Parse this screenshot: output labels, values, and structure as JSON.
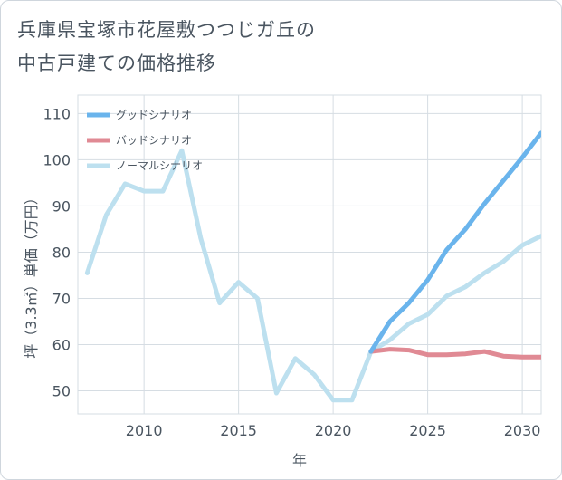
{
  "title_lines": [
    "兵庫県宝塚市花屋敷つつじガ丘の",
    "中古戸建ての価格推移"
  ],
  "chart_data": {
    "type": "line",
    "title": "兵庫県宝塚市花屋敷つつじガ丘の中古戸建ての価格推移",
    "xlabel": "年",
    "ylabel": "坪（3.3㎡）単価（万円）",
    "xlim": [
      2006.5,
      2031
    ],
    "ylim": [
      45,
      114
    ],
    "x_ticks": [
      2010,
      2015,
      2020,
      2025,
      2030
    ],
    "y_ticks": [
      50,
      60,
      70,
      80,
      90,
      100,
      110
    ],
    "grid": true,
    "legend_position": "top-left",
    "series": [
      {
        "name": "グッドシナリオ",
        "color": "#6ab4ec",
        "x": [
          2022,
          2023,
          2024,
          2025,
          2026,
          2027,
          2028,
          2029,
          2030,
          2031
        ],
        "y": [
          58.5,
          65,
          69,
          74,
          80.5,
          85,
          90.5,
          95.5,
          100.5,
          105.8
        ]
      },
      {
        "name": "バッドシナリオ",
        "color": "#e08a94",
        "x": [
          2022,
          2023,
          2024,
          2025,
          2026,
          2027,
          2028,
          2029,
          2030,
          2031
        ],
        "y": [
          58.5,
          59,
          58.8,
          57.8,
          57.8,
          58,
          58.5,
          57.5,
          57.3,
          57.3
        ]
      },
      {
        "name": "ノーマルシナリオ",
        "color": "#bde0ef",
        "x": [
          2007,
          2008,
          2009,
          2010,
          2011,
          2012,
          2013,
          2014,
          2015,
          2016,
          2017,
          2018,
          2019,
          2020,
          2021,
          2022,
          2023,
          2024,
          2025,
          2026,
          2027,
          2028,
          2029,
          2030,
          2031
        ],
        "y": [
          75.5,
          88,
          94.8,
          93.2,
          93.2,
          102,
          83,
          69,
          73.5,
          70,
          49.5,
          57,
          53.5,
          48,
          48,
          58.5,
          61,
          64.5,
          66.5,
          70.5,
          72.5,
          75.5,
          78,
          81.5,
          83.5
        ]
      }
    ]
  }
}
